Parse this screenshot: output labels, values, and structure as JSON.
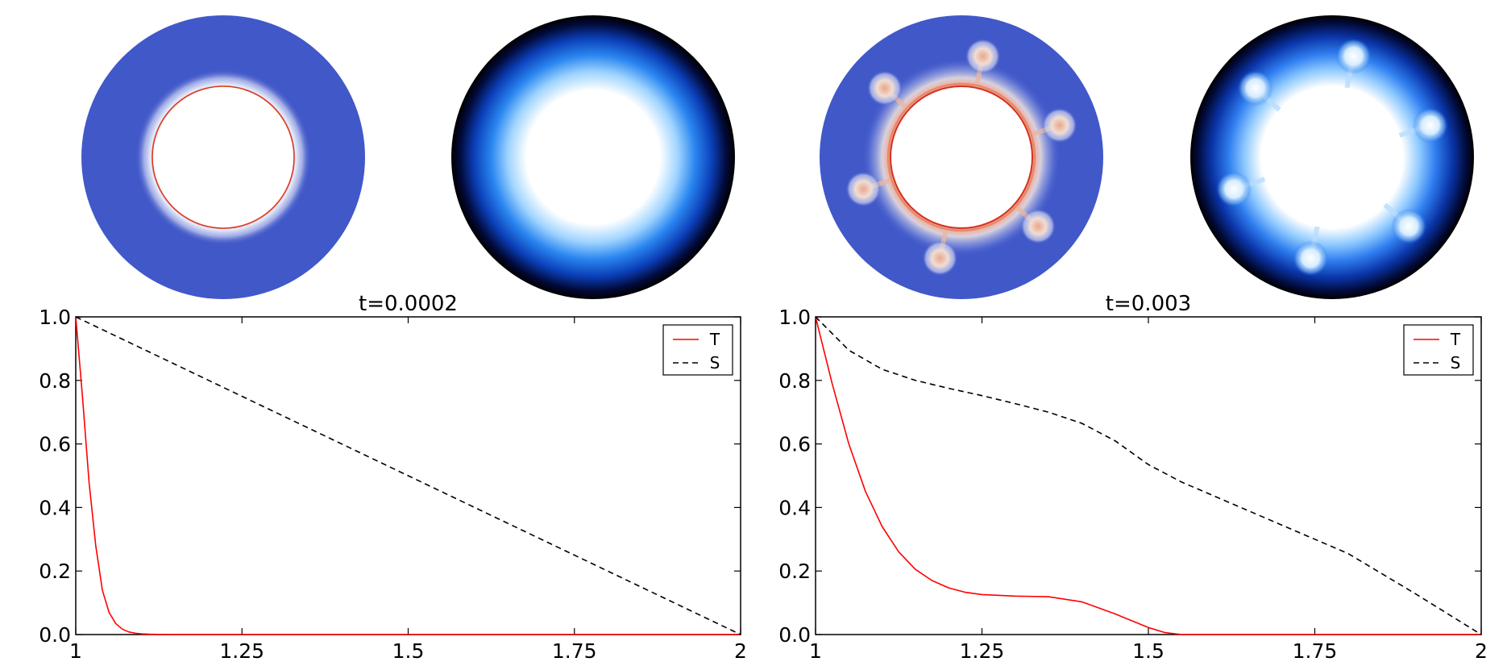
{
  "colors": {
    "temperature_line": "#ff0000",
    "salinity_line": "#000000",
    "field_blue": "#4158c9",
    "field_hot": "#d8462a"
  },
  "chart_data": [
    {
      "type": "line",
      "title": "t=0.0002",
      "xlabel": "",
      "ylabel": "",
      "xlim": [
        1,
        2
      ],
      "ylim": [
        0,
        1
      ],
      "xticks": [
        1,
        1.25,
        1.5,
        1.75,
        2
      ],
      "xtick_labels": [
        "1",
        "1.25",
        "1.5",
        "1.75",
        "2"
      ],
      "yticks": [
        0,
        0.2,
        0.4,
        0.6,
        0.8,
        1.0
      ],
      "ytick_labels": [
        "0.0",
        "0.2",
        "0.4",
        "0.6",
        "0.8",
        "1.0"
      ],
      "legend_position": "top-right",
      "series": [
        {
          "name": "T",
          "style": "solid",
          "color": "#ff0000",
          "x": [
            1.0,
            1.01,
            1.02,
            1.03,
            1.04,
            1.05,
            1.06,
            1.07,
            1.08,
            1.09,
            1.1,
            1.11,
            1.12,
            1.14,
            1.2,
            1.5,
            2.0
          ],
          "y": [
            1.0,
            0.75,
            0.48,
            0.28,
            0.14,
            0.07,
            0.035,
            0.017,
            0.008,
            0.004,
            0.002,
            0.001,
            0.0005,
            0.0,
            0.0,
            0.0,
            0.0
          ]
        },
        {
          "name": "S",
          "style": "dashed",
          "color": "#000000",
          "x": [
            1.0,
            2.0
          ],
          "y": [
            1.0,
            0.0
          ]
        }
      ]
    },
    {
      "type": "line",
      "title": "t=0.003",
      "xlabel": "",
      "ylabel": "",
      "xlim": [
        1,
        2
      ],
      "ylim": [
        0,
        1
      ],
      "xticks": [
        1,
        1.25,
        1.5,
        1.75,
        2
      ],
      "xtick_labels": [
        "1",
        "1.25",
        "1.5",
        "1.75",
        "2"
      ],
      "yticks": [
        0,
        0.2,
        0.4,
        0.6,
        0.8,
        1.0
      ],
      "ytick_labels": [
        "0.0",
        "0.2",
        "0.4",
        "0.6",
        "0.8",
        "1.0"
      ],
      "legend_position": "top-right",
      "series": [
        {
          "name": "T",
          "style": "solid",
          "color": "#ff0000",
          "x": [
            1.0,
            1.025,
            1.05,
            1.075,
            1.1,
            1.125,
            1.15,
            1.175,
            1.2,
            1.225,
            1.25,
            1.3,
            1.35,
            1.4,
            1.45,
            1.5,
            1.525,
            1.55,
            1.6,
            2.0
          ],
          "y": [
            1.0,
            0.79,
            0.6,
            0.45,
            0.34,
            0.26,
            0.205,
            0.17,
            0.147,
            0.133,
            0.126,
            0.121,
            0.119,
            0.103,
            0.065,
            0.022,
            0.006,
            0.0,
            0.0,
            0.0
          ]
        },
        {
          "name": "S",
          "style": "dashed",
          "color": "#000000",
          "x": [
            1.0,
            1.05,
            1.1,
            1.15,
            1.2,
            1.25,
            1.3,
            1.35,
            1.4,
            1.45,
            1.5,
            1.55,
            1.6,
            1.7,
            1.8,
            1.9,
            2.0
          ],
          "y": [
            1.0,
            0.895,
            0.835,
            0.8,
            0.775,
            0.752,
            0.727,
            0.7,
            0.665,
            0.61,
            0.535,
            0.48,
            0.435,
            0.345,
            0.255,
            0.13,
            0.0
          ]
        }
      ]
    }
  ],
  "field_images": [
    {
      "name": "temperature-field-t0",
      "symmetry": 0,
      "blobs": 0
    },
    {
      "name": "salinity-field-t0",
      "symmetry": 0,
      "blobs": 0
    },
    {
      "name": "temperature-field-t1",
      "symmetry": 6,
      "blobs": 6
    },
    {
      "name": "salinity-field-t1",
      "symmetry": 6,
      "blobs": 6
    }
  ]
}
